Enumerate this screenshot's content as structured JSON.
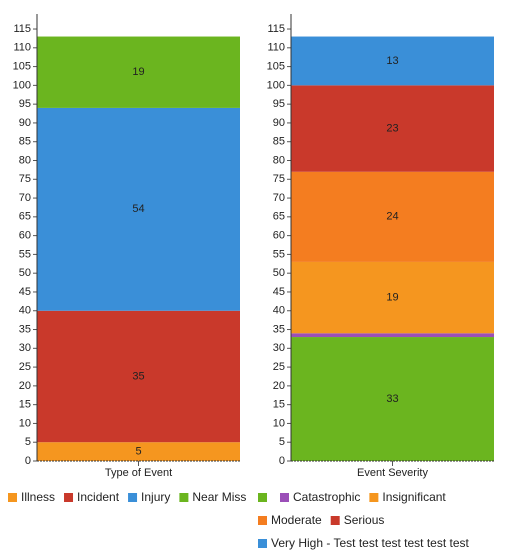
{
  "chart_data": [
    {
      "type": "stacked-bar",
      "categories": [
        "Type of Event"
      ],
      "ylim": [
        0,
        119
      ],
      "yticks": [
        0,
        5,
        10,
        15,
        20,
        25,
        30,
        35,
        40,
        45,
        50,
        55,
        60,
        65,
        70,
        75,
        80,
        85,
        90,
        95,
        100,
        105,
        110,
        115
      ],
      "series": [
        {
          "name": "Illness",
          "color": "#f5961f",
          "values": [
            5
          ]
        },
        {
          "name": "Incident",
          "color": "#c9392b",
          "values": [
            35
          ]
        },
        {
          "name": "Injury",
          "color": "#3a8fd8",
          "values": [
            54
          ]
        },
        {
          "name": "Near Miss",
          "color": "#6bb51f",
          "values": [
            19
          ]
        }
      ]
    },
    {
      "type": "stacked-bar",
      "categories": [
        "Event Severity"
      ],
      "ylim": [
        0,
        119
      ],
      "yticks": [
        0,
        5,
        10,
        15,
        20,
        25,
        30,
        35,
        40,
        45,
        50,
        55,
        60,
        65,
        70,
        75,
        80,
        85,
        90,
        95,
        100,
        105,
        110,
        115
      ],
      "series": [
        {
          "name": null,
          "color": "#6bb51f",
          "values": [
            33
          ]
        },
        {
          "name": "Catastrophic",
          "color": "#9b4fb8",
          "values": [
            1
          ]
        },
        {
          "name": "Insignificant",
          "color": "#f5961f",
          "values": [
            19
          ]
        },
        {
          "name": "Moderate",
          "color": "#f47d20",
          "values": [
            24
          ]
        },
        {
          "name": "Serious",
          "color": "#c9392b",
          "values": [
            23
          ]
        },
        {
          "name": "Very High - Test test test test test test",
          "color": "#3a8fd8",
          "values": [
            13
          ]
        }
      ]
    }
  ]
}
